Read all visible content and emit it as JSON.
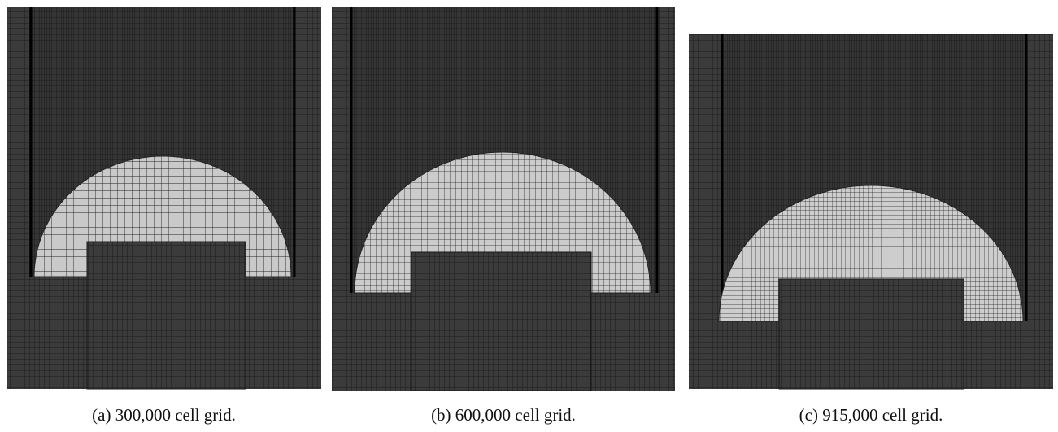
{
  "figure": {
    "panels": [
      {
        "caption": "(a) 300,000 cell grid."
      },
      {
        "caption": "(b) 600,000 cell grid."
      },
      {
        "caption": "(c) 915,000 cell grid."
      }
    ]
  }
}
